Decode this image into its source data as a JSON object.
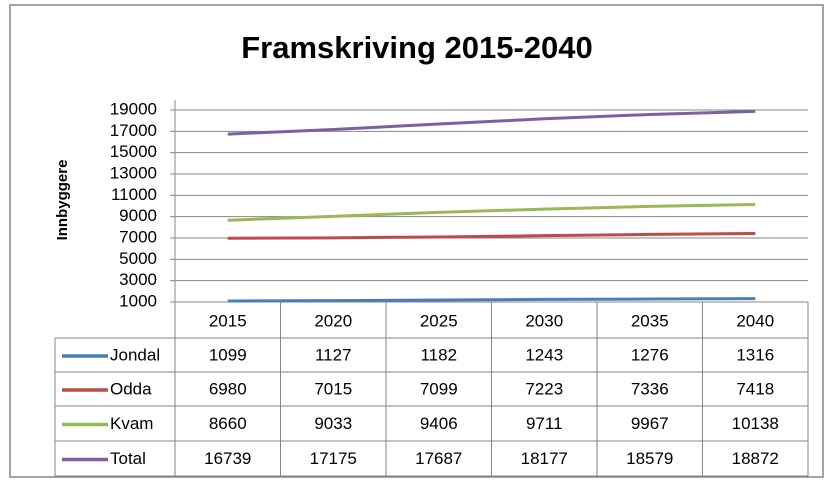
{
  "chart_data": {
    "type": "line",
    "title": "Framskriving 2015-2040",
    "y_label": "Innbyggere",
    "categories": [
      "2015",
      "2020",
      "2025",
      "2030",
      "2035",
      "2040"
    ],
    "series": [
      {
        "name": "Jondal",
        "color": "#4a7ebb",
        "values": [
          1099,
          1127,
          1182,
          1243,
          1276,
          1316
        ]
      },
      {
        "name": "Odda",
        "color": "#be4b48",
        "values": [
          6980,
          7015,
          7099,
          7223,
          7336,
          7418
        ]
      },
      {
        "name": "Kvam",
        "color": "#98b954",
        "values": [
          8660,
          9033,
          9406,
          9711,
          9967,
          10138
        ]
      },
      {
        "name": "Total",
        "color": "#7d60a0",
        "values": [
          16739,
          17175,
          17687,
          18177,
          18579,
          18872
        ]
      }
    ],
    "ylim": [
      1000,
      19000
    ],
    "yticks": [
      1000,
      3000,
      5000,
      7000,
      9000,
      11000,
      13000,
      15000,
      17000,
      19000
    ],
    "grid": true
  }
}
